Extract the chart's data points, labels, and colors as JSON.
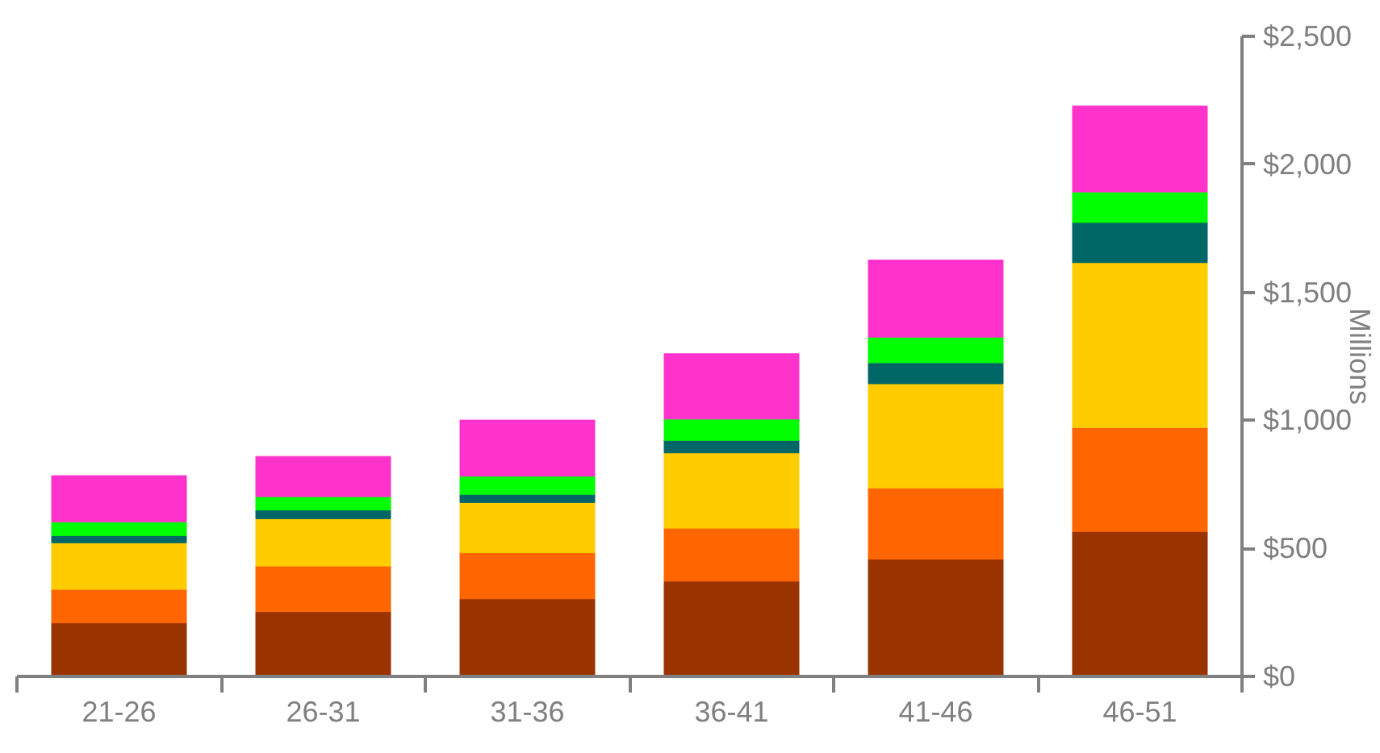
{
  "chart_data": {
    "type": "bar",
    "stacked": true,
    "ylabel": "Millions",
    "categories": [
      "21-26",
      "26-31",
      "31-36",
      "36-41",
      "41-46",
      "46-51"
    ],
    "series": [
      {
        "color": "#993300",
        "values": [
          209,
          253,
          303,
          372,
          458,
          566
        ]
      },
      {
        "color": "#ff6600",
        "values": [
          131,
          178,
          180,
          207,
          278,
          406
        ]
      },
      {
        "color": "#ffcc00",
        "values": [
          182,
          185,
          196,
          294,
          407,
          644
        ]
      },
      {
        "color": "#006666",
        "values": [
          28,
          34,
          32,
          49,
          82,
          157
        ]
      },
      {
        "color": "#00ff00",
        "values": [
          54,
          52,
          71,
          83,
          100,
          119
        ]
      },
      {
        "color": "#ff33cc",
        "values": [
          180,
          157,
          219,
          255,
          301,
          336
        ]
      }
    ],
    "ylim": [
      0,
      2500
    ],
    "yticks": [
      {
        "value": 0,
        "label": "$0"
      },
      {
        "value": 500,
        "label": "$500"
      },
      {
        "value": 1000,
        "label": "$1,000"
      },
      {
        "value": 1500,
        "label": "$1,500"
      },
      {
        "value": 2000,
        "label": "$2,000"
      },
      {
        "value": 2500,
        "label": "$2,500"
      }
    ],
    "grid": false
  }
}
